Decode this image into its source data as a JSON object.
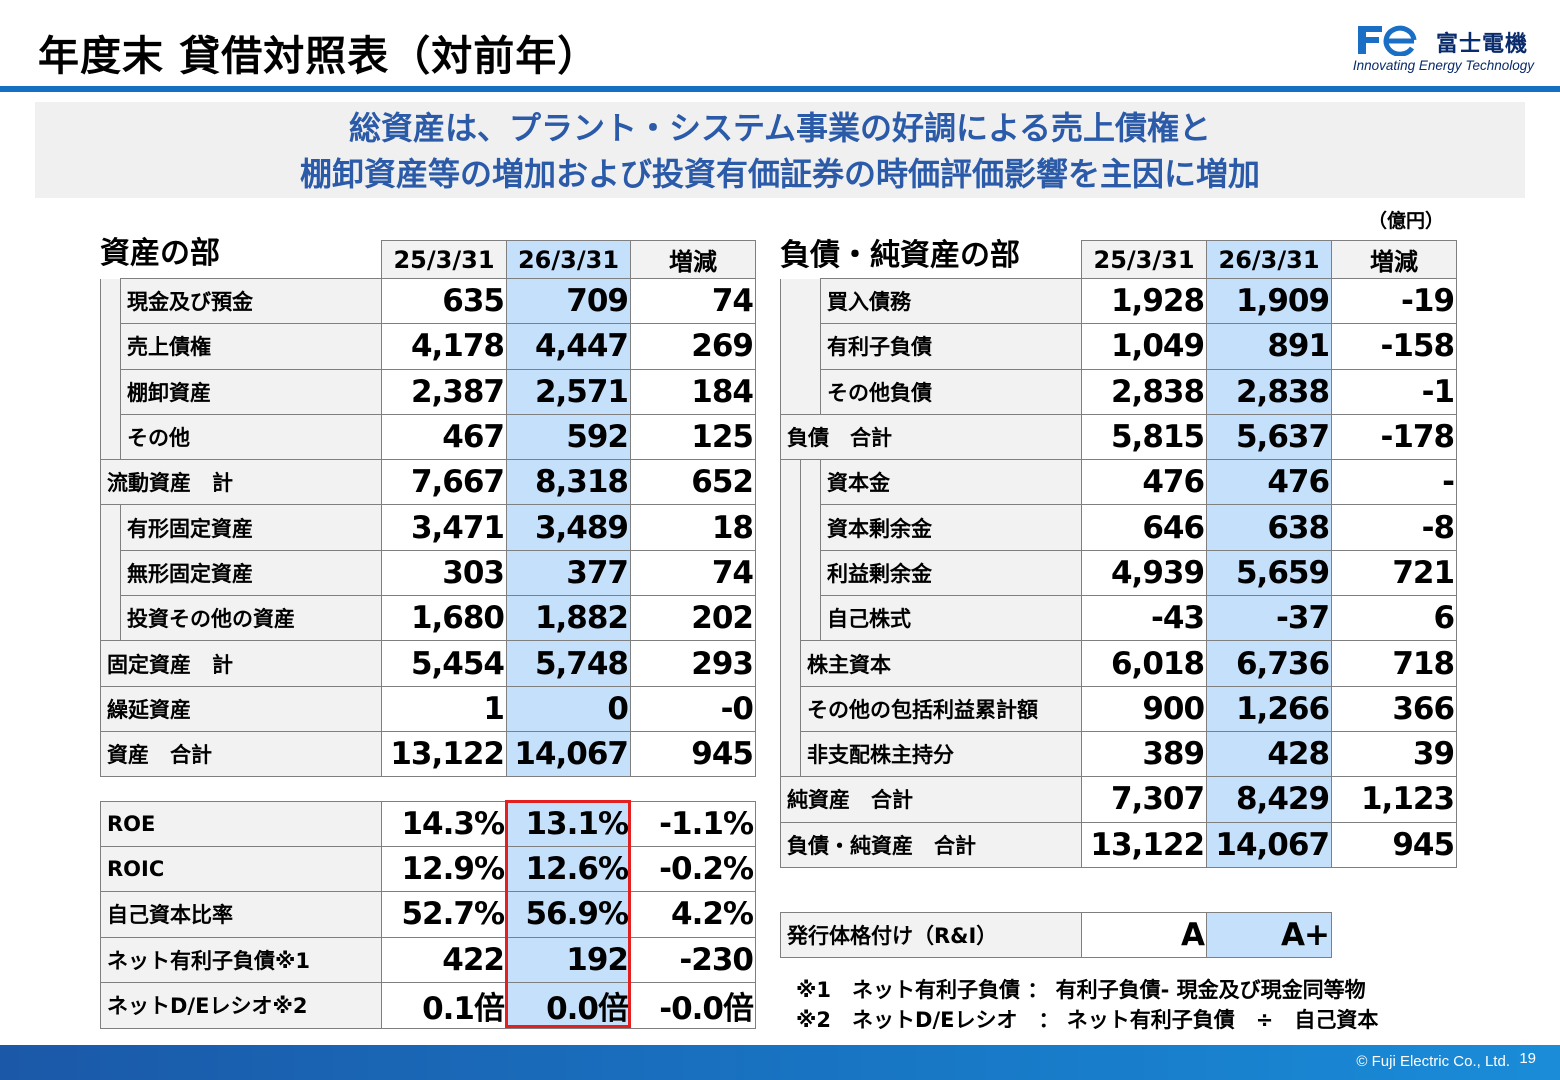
{
  "title": "年度末 貸借対照表（対前年）",
  "logo": {
    "name": "富士電機",
    "tagline": "Innovating Energy Technology",
    "mark_color": "#1a6fc4"
  },
  "banner": {
    "line1": "総資産は、プラント・システム事業の好調による売上債権と",
    "line2": "棚卸資産等の増加および投資有価証券の時価評価影響を主因に増加",
    "color": "#2a5aa8"
  },
  "unit": "（億円）",
  "columns": {
    "prev": "25/3/31",
    "cur": "26/3/31",
    "diff": "増減"
  },
  "assets": {
    "heading": "資産の部",
    "rows": [
      {
        "label": "現金及び預金",
        "prev": "635",
        "cur": "709",
        "diff": "74"
      },
      {
        "label": "売上債権",
        "prev": "4,178",
        "cur": "4,447",
        "diff": "269"
      },
      {
        "label": "棚卸資産",
        "prev": "2,387",
        "cur": "2,571",
        "diff": "184"
      },
      {
        "label": "その他",
        "prev": "467",
        "cur": "592",
        "diff": "125"
      },
      {
        "label": "流動資産　計",
        "prev": "7,667",
        "cur": "8,318",
        "diff": "652"
      },
      {
        "label": "有形固定資産",
        "prev": "3,471",
        "cur": "3,489",
        "diff": "18"
      },
      {
        "label": "無形固定資産",
        "prev": "303",
        "cur": "377",
        "diff": "74"
      },
      {
        "label": "投資その他の資産",
        "prev": "1,680",
        "cur": "1,882",
        "diff": "202"
      },
      {
        "label": "固定資産　計",
        "prev": "5,454",
        "cur": "5,748",
        "diff": "293"
      },
      {
        "label": "繰延資産",
        "prev": "1",
        "cur": "0",
        "diff": "-0"
      },
      {
        "label": "資産　合計",
        "prev": "13,122",
        "cur": "14,067",
        "diff": "945"
      }
    ]
  },
  "liabilities": {
    "heading": "負債・純資産の部",
    "rows": [
      {
        "label": "買入債務",
        "prev": "1,928",
        "cur": "1,909",
        "diff": "-19"
      },
      {
        "label": "有利子負債",
        "prev": "1,049",
        "cur": "891",
        "diff": "-158"
      },
      {
        "label": "その他負債",
        "prev": "2,838",
        "cur": "2,838",
        "diff": "-1"
      },
      {
        "label": "負債　合計",
        "prev": "5,815",
        "cur": "5,637",
        "diff": "-178"
      },
      {
        "label": "資本金",
        "prev": "476",
        "cur": "476",
        "diff": "-"
      },
      {
        "label": "資本剰余金",
        "prev": "646",
        "cur": "638",
        "diff": "-8"
      },
      {
        "label": "利益剰余金",
        "prev": "4,939",
        "cur": "5,659",
        "diff": "721"
      },
      {
        "label": "自己株式",
        "prev": "-43",
        "cur": "-37",
        "diff": "6"
      },
      {
        "label": "株主資本",
        "prev": "6,018",
        "cur": "6,736",
        "diff": "718"
      },
      {
        "label": "その他の包括利益累計額",
        "prev": "900",
        "cur": "1,266",
        "diff": "366"
      },
      {
        "label": "非支配株主持分",
        "prev": "389",
        "cur": "428",
        "diff": "39"
      },
      {
        "label": "純資産　合計",
        "prev": "7,307",
        "cur": "8,429",
        "diff": "1,123"
      },
      {
        "label": "負債・純資産　合計",
        "prev": "13,122",
        "cur": "14,067",
        "diff": "945"
      }
    ]
  },
  "indicators": {
    "rows": [
      {
        "label": "ROE",
        "prev": "14.3%",
        "cur": "13.1%",
        "diff": "-1.1%"
      },
      {
        "label": "ROIC",
        "prev": "12.9%",
        "cur": "12.6%",
        "diff": "-0.2%"
      },
      {
        "label": "自己資本比率",
        "prev": "52.7%",
        "cur": "56.9%",
        "diff": "4.2%"
      },
      {
        "label": "ネット有利子負債※1",
        "prev": "422",
        "cur": "192",
        "diff": "-230"
      },
      {
        "label": "ネットD/Eレシオ※2",
        "prev": "0.1倍",
        "cur": "0.0倍",
        "diff": "-0.0倍"
      }
    ]
  },
  "rating": {
    "label": "発行体格付け（R&I）",
    "prev": "A",
    "cur": "A+"
  },
  "notes": {
    "n1": "※1　ネット有利子負債 ： 有利子負債- 現金及び現金同等物",
    "n2": "※2　ネットD/Eレシオ　： ネット有利子負債　÷　自己資本"
  },
  "footer": {
    "copyright": "© Fuji Electric Co., Ltd.",
    "page": "19"
  },
  "colors": {
    "accent": "#1670c2",
    "highlight": "#c5e0fb",
    "label_bg": "#f2f2f2",
    "red_box": "#e41f1f"
  }
}
